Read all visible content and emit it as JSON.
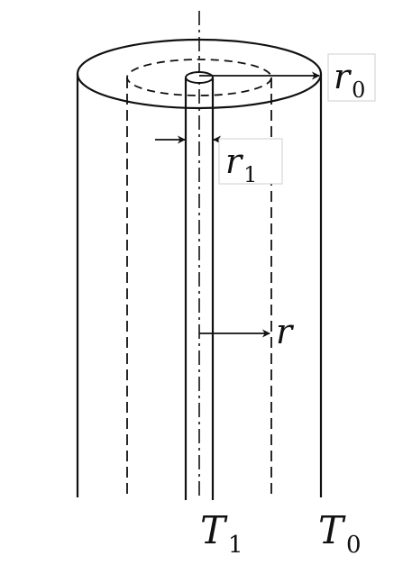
{
  "labels": {
    "outer_radius": {
      "symbol": "r",
      "subscript": "0"
    },
    "inner_radius": {
      "symbol": "r",
      "subscript": "1"
    },
    "radius": {
      "symbol": "r"
    },
    "inner_temperature": {
      "symbol": "T",
      "subscript": "1"
    },
    "outer_temperature": {
      "symbol": "T",
      "subscript": "0"
    }
  },
  "colors": {
    "stroke": "#111111",
    "label_box": "#cfcfcf",
    "background": "#ffffff"
  }
}
